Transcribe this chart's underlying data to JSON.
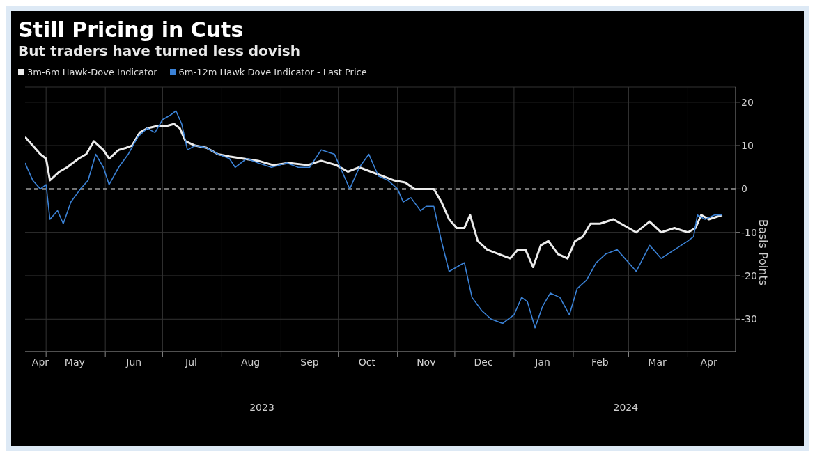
{
  "chart_data": {
    "type": "line",
    "title": "Still Pricing in Cuts",
    "subtitle": "But traders have turned less dovish",
    "ylabel": "Basis Points",
    "annotations": [
      "2023",
      "2024"
    ],
    "xlim": [
      "2023-04-20",
      "2024-04-26"
    ],
    "xticks": [
      {
        "value": "2023-04-28",
        "label": "Apr"
      },
      {
        "value": "2023-05-01",
        "label": null
      },
      {
        "value": "2023-05-16",
        "label": "May"
      },
      {
        "value": "2023-06-01",
        "label": null
      },
      {
        "value": "2023-06-16",
        "label": "Jun"
      },
      {
        "value": "2023-07-01",
        "label": null
      },
      {
        "value": "2023-07-16",
        "label": "Jul"
      },
      {
        "value": "2023-08-01",
        "label": null
      },
      {
        "value": "2023-08-16",
        "label": "Aug"
      },
      {
        "value": "2023-09-01",
        "label": null
      },
      {
        "value": "2023-09-16",
        "label": "Sep"
      },
      {
        "value": "2023-10-01",
        "label": null
      },
      {
        "value": "2023-10-16",
        "label": "Oct"
      },
      {
        "value": "2023-11-01",
        "label": null
      },
      {
        "value": "2023-11-16",
        "label": "Nov"
      },
      {
        "value": "2023-12-01",
        "label": null
      },
      {
        "value": "2023-12-16",
        "label": "Dec"
      },
      {
        "value": "2024-01-01",
        "label": null
      },
      {
        "value": "2024-01-16",
        "label": "Jan"
      },
      {
        "value": "2024-02-01",
        "label": null
      },
      {
        "value": "2024-02-15",
        "label": "Feb"
      },
      {
        "value": "2024-03-01",
        "label": null
      },
      {
        "value": "2024-03-16",
        "label": "Mar"
      },
      {
        "value": "2024-04-01",
        "label": null
      },
      {
        "value": "2024-04-12",
        "label": "Apr"
      }
    ],
    "ylim": [
      -37.5,
      23.5
    ],
    "yticks": [
      -30,
      -20,
      -10,
      0,
      10,
      20
    ],
    "grid": true,
    "legend": "top left",
    "marker": "none",
    "line_style": "solid",
    "ref_lines": [
      {
        "axis": "y",
        "value": 0,
        "label": null,
        "color": "#e8e8e8",
        "line_style": "dashed"
      }
    ],
    "series": [
      {
        "name": "3m-6m Hawk-Dove Indicator",
        "color": "#ececec",
        "x": [
          "2023-04-20",
          "2023-04-24",
          "2023-04-28",
          "2023-05-01",
          "2023-05-03",
          "2023-05-08",
          "2023-05-12",
          "2023-05-18",
          "2023-05-22",
          "2023-05-26",
          "2023-05-31",
          "2023-06-03",
          "2023-06-08",
          "2023-06-12",
          "2023-06-15",
          "2023-06-19",
          "2023-06-23",
          "2023-06-28",
          "2023-07-03",
          "2023-07-07",
          "2023-07-10",
          "2023-07-13",
          "2023-07-18",
          "2023-07-24",
          "2023-07-30",
          "2023-08-05",
          "2023-08-12",
          "2023-08-20",
          "2023-08-28",
          "2023-09-05",
          "2023-09-15",
          "2023-09-22",
          "2023-09-30",
          "2023-10-06",
          "2023-10-12",
          "2023-10-18",
          "2023-10-24",
          "2023-10-30",
          "2023-11-05",
          "2023-11-10",
          "2023-11-15",
          "2023-11-20",
          "2023-11-24",
          "2023-11-28",
          "2023-12-02",
          "2023-12-06",
          "2023-12-09",
          "2023-12-13",
          "2023-12-18",
          "2023-12-24",
          "2023-12-30",
          "2024-01-03",
          "2024-01-07",
          "2024-01-11",
          "2024-01-15",
          "2024-01-19",
          "2024-01-24",
          "2024-01-29",
          "2024-02-02",
          "2024-02-06",
          "2024-02-10",
          "2024-02-15",
          "2024-02-22",
          "2024-03-01",
          "2024-03-05",
          "2024-03-12",
          "2024-03-18",
          "2024-03-25",
          "2024-04-01",
          "2024-04-05",
          "2024-04-08",
          "2024-04-12",
          "2024-04-19"
        ],
        "values": [
          12,
          10,
          8,
          7,
          2,
          4,
          5,
          7,
          8,
          11,
          9,
          7,
          9,
          9.5,
          10,
          13,
          14,
          14.5,
          14.5,
          15,
          14,
          11,
          10,
          9.5,
          8,
          7.5,
          7,
          6.5,
          5.5,
          6,
          5.5,
          6.5,
          5.5,
          4,
          5,
          4,
          3,
          2,
          1.5,
          0,
          0,
          0,
          -3,
          -7,
          -9,
          -9,
          -6,
          -12,
          -14,
          -15,
          -16,
          -14,
          -14,
          -18,
          -13,
          -12,
          -15,
          -16,
          -12,
          -11,
          -8,
          -8,
          -7,
          -9,
          -10,
          -7.5,
          -10,
          -9,
          -10,
          -9,
          -6,
          -7,
          -6
        ]
      },
      {
        "name": "6m-12m Hawk Dove Indicator - Last Price",
        "color": "#3b82d6",
        "x": [
          "2023-04-20",
          "2023-04-24",
          "2023-04-28",
          "2023-05-01",
          "2023-05-03",
          "2023-05-07",
          "2023-05-10",
          "2023-05-14",
          "2023-05-19",
          "2023-05-23",
          "2023-05-27",
          "2023-05-31",
          "2023-06-03",
          "2023-06-08",
          "2023-06-13",
          "2023-06-18",
          "2023-06-23",
          "2023-06-27",
          "2023-07-01",
          "2023-07-05",
          "2023-07-08",
          "2023-07-11",
          "2023-07-14",
          "2023-07-18",
          "2023-07-24",
          "2023-07-30",
          "2023-08-05",
          "2023-08-08",
          "2023-08-14",
          "2023-08-20",
          "2023-08-27",
          "2023-09-04",
          "2023-09-10",
          "2023-09-16",
          "2023-09-22",
          "2023-09-29",
          "2023-10-03",
          "2023-10-07",
          "2023-10-12",
          "2023-10-17",
          "2023-10-22",
          "2023-10-27",
          "2023-11-01",
          "2023-11-04",
          "2023-11-08",
          "2023-11-13",
          "2023-11-16",
          "2023-11-20",
          "2023-11-24",
          "2023-11-28",
          "2023-12-02",
          "2023-12-06",
          "2023-12-10",
          "2023-12-15",
          "2023-12-20",
          "2023-12-26",
          "2024-01-01",
          "2024-01-05",
          "2024-01-08",
          "2024-01-12",
          "2024-01-16",
          "2024-01-20",
          "2024-01-25",
          "2024-01-30",
          "2024-02-03",
          "2024-02-08",
          "2024-02-13",
          "2024-02-18",
          "2024-02-24",
          "2024-03-01",
          "2024-03-05",
          "2024-03-12",
          "2024-03-18",
          "2024-03-25",
          "2024-04-01",
          "2024-04-04",
          "2024-04-06",
          "2024-04-10",
          "2024-04-15",
          "2024-04-19"
        ],
        "values": [
          6,
          2,
          0,
          1,
          -7,
          -5,
          -8,
          -3,
          0,
          2,
          8,
          5,
          1,
          5,
          8,
          12,
          14,
          13,
          16,
          17,
          18,
          15,
          9,
          10,
          9.5,
          8,
          7,
          5,
          7,
          6,
          5,
          6,
          5,
          5,
          9,
          8,
          4,
          0,
          5,
          8,
          3,
          2,
          0,
          -3,
          -2,
          -5,
          -4,
          -4,
          -12,
          -19,
          -18,
          -17,
          -25,
          -28,
          -30,
          -31,
          -29,
          -25,
          -26,
          -32,
          -27,
          -24,
          -25,
          -29,
          -23,
          -21,
          -17,
          -15,
          -14,
          -17,
          -19,
          -13,
          -16,
          -14,
          -12,
          -11,
          -6,
          -7,
          -6,
          -6
        ]
      }
    ]
  }
}
